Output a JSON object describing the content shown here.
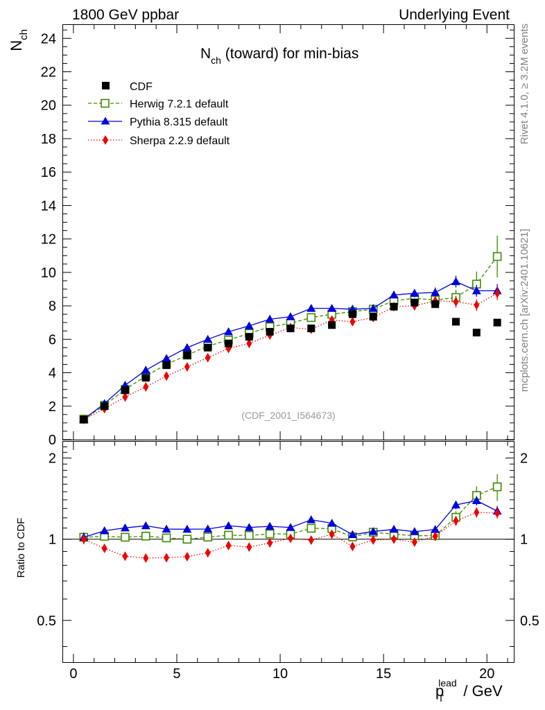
{
  "header": {
    "left": "1800 GeV ppbar",
    "right": "Underlying Event"
  },
  "side_text": {
    "rivet": "Rivet 4.1.0, ≥ 3.2M events",
    "mcplots": "mcplots.cern.ch [arXiv:2401.10621]"
  },
  "colors": {
    "cdf": "#000000",
    "herwig": "#3a8a00",
    "pythia": "#0000dd",
    "sherpa": "#ee0000"
  },
  "chart_data": {
    "type": "line",
    "title_main": "N",
    "title_sub": "ch",
    "title_rest": " (toward) for min-bias",
    "analysis_tag": "(CDF_2001_I564673)",
    "ylabel_main": "N",
    "ylabel_sub": "ch",
    "ratio_ylabel": "Ratio to CDF",
    "xlabel_pre": "p",
    "xlabel_sub": "T",
    "xlabel_sup": "lead",
    "xlabel_post": " / GeV",
    "xlim": [
      -0.5,
      21.3
    ],
    "ylim": [
      0,
      24.8
    ],
    "ratio_ylim": [
      0.35,
      2.3
    ],
    "x_ticks": [
      0,
      5,
      10,
      15,
      20
    ],
    "x_tick_labels": [
      "0",
      "5",
      "10",
      "15",
      "20"
    ],
    "y_ticks": [
      0,
      2,
      4,
      6,
      8,
      10,
      12,
      14,
      16,
      18,
      20,
      22,
      24
    ],
    "y_tick_labels": [
      "0",
      "2",
      "4",
      "6",
      "8",
      "10",
      "12",
      "14",
      "16",
      "18",
      "20",
      "22",
      "24"
    ],
    "ratio_ticks": [
      0.5,
      1,
      2
    ],
    "ratio_tick_labels": [
      "0.5",
      "1",
      "2"
    ],
    "x": [
      0.5,
      1.5,
      2.5,
      3.5,
      4.5,
      5.5,
      6.5,
      7.5,
      8.5,
      9.5,
      10.5,
      11.5,
      12.5,
      13.5,
      14.5,
      15.5,
      16.5,
      17.5,
      18.5,
      19.5,
      20.5
    ],
    "series": [
      {
        "name": "CDF",
        "values": [
          1.2,
          2.0,
          2.95,
          3.7,
          4.45,
          5.05,
          5.5,
          5.75,
          6.15,
          6.45,
          6.65,
          6.65,
          6.85,
          7.5,
          7.35,
          7.95,
          8.2,
          8.1,
          7.05,
          6.4,
          7.0
        ]
      },
      {
        "name": "Herwig 7.2.1 default",
        "values": [
          1.22,
          2.05,
          3.0,
          3.8,
          4.5,
          5.05,
          5.6,
          5.95,
          6.35,
          6.75,
          6.95,
          7.3,
          7.5,
          7.65,
          7.8,
          8.3,
          8.45,
          8.35,
          8.5,
          9.3,
          10.95
        ],
        "errors": [
          0.05,
          0.05,
          0.05,
          0.05,
          0.05,
          0.05,
          0.06,
          0.07,
          0.08,
          0.08,
          0.09,
          0.1,
          0.12,
          0.14,
          0.16,
          0.2,
          0.25,
          0.3,
          0.45,
          0.75,
          1.25
        ]
      },
      {
        "name": "Pythia 8.315 default",
        "values": [
          1.22,
          2.15,
          3.25,
          4.15,
          4.85,
          5.5,
          6.0,
          6.45,
          6.8,
          7.2,
          7.35,
          7.85,
          7.85,
          7.8,
          7.85,
          8.65,
          8.75,
          8.8,
          9.45,
          8.9,
          8.9
        ],
        "errors": [
          0.05,
          0.05,
          0.05,
          0.05,
          0.05,
          0.05,
          0.06,
          0.07,
          0.08,
          0.08,
          0.09,
          0.1,
          0.12,
          0.14,
          0.16,
          0.2,
          0.25,
          0.3,
          0.35,
          0.35,
          0.4
        ]
      },
      {
        "name": "Sherpa 2.2.9 default",
        "values": [
          1.2,
          1.85,
          2.55,
          3.15,
          3.8,
          4.35,
          4.9,
          5.45,
          5.75,
          6.25,
          6.7,
          6.6,
          7.15,
          7.05,
          7.3,
          7.95,
          8.0,
          8.3,
          8.25,
          8.05,
          8.75
        ],
        "errors": [
          0.05,
          0.05,
          0.05,
          0.05,
          0.05,
          0.05,
          0.06,
          0.07,
          0.08,
          0.08,
          0.09,
          0.1,
          0.12,
          0.14,
          0.16,
          0.2,
          0.25,
          0.3,
          0.35,
          0.35,
          0.4
        ]
      }
    ]
  }
}
